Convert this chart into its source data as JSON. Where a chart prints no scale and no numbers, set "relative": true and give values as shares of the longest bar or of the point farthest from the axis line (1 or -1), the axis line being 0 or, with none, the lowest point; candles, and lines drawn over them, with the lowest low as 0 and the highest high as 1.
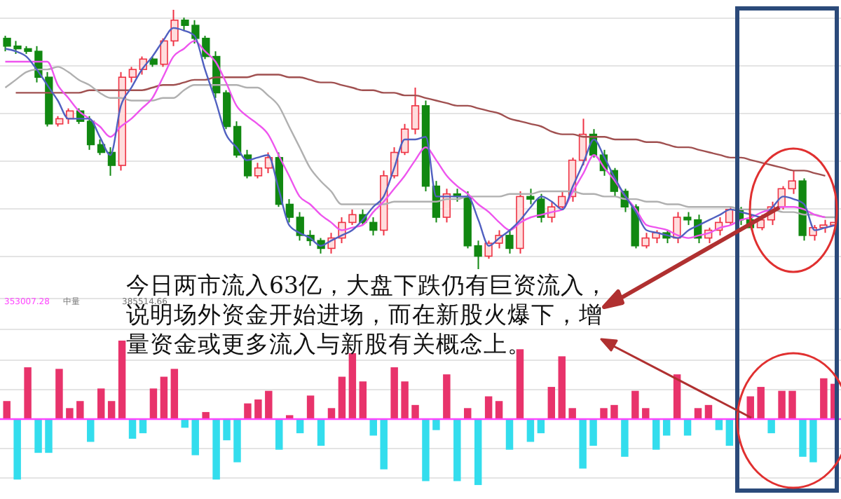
{
  "chart_data": [
    {
      "type": "candlestick",
      "relative": true,
      "grid": true,
      "categories": [
        null,
        null,
        null,
        null,
        null,
        null,
        null,
        null,
        null,
        null,
        null,
        null,
        null,
        null,
        null,
        null,
        null,
        null,
        null,
        null,
        null,
        null,
        null,
        null,
        null,
        null,
        null,
        null,
        null,
        null,
        null,
        null,
        null,
        null,
        null,
        null,
        null,
        null,
        null,
        null,
        null,
        null,
        null,
        null,
        null,
        null,
        null,
        null,
        null,
        null,
        null,
        null,
        null,
        null,
        null,
        null,
        null,
        null,
        null,
        null,
        null,
        null,
        null,
        null,
        null,
        null,
        null,
        null,
        null,
        null,
        null,
        null,
        null,
        null,
        null,
        null,
        null,
        null,
        null,
        null
      ],
      "ohlc": [
        [
          0.89,
          0.9,
          0.84,
          0.86
        ],
        [
          0.86,
          0.88,
          0.83,
          0.85
        ],
        [
          0.85,
          0.86,
          0.83,
          0.84
        ],
        [
          0.84,
          0.86,
          0.72,
          0.74
        ],
        [
          0.74,
          0.76,
          0.55,
          0.56
        ],
        [
          0.56,
          0.59,
          0.55,
          0.58
        ],
        [
          0.58,
          0.62,
          0.56,
          0.61
        ],
        [
          0.61,
          0.62,
          0.56,
          0.57
        ],
        [
          0.57,
          0.59,
          0.46,
          0.48
        ],
        [
          0.48,
          0.5,
          0.44,
          0.45
        ],
        [
          0.45,
          0.47,
          0.36,
          0.4
        ],
        [
          0.4,
          0.76,
          0.38,
          0.74
        ],
        [
          0.74,
          0.78,
          0.72,
          0.77
        ],
        [
          0.77,
          0.82,
          0.75,
          0.81
        ],
        [
          0.81,
          0.82,
          0.78,
          0.79
        ],
        [
          0.79,
          0.89,
          0.78,
          0.88
        ],
        [
          0.88,
          1,
          0.86,
          0.96
        ],
        [
          0.96,
          0.97,
          0.92,
          0.94
        ],
        [
          0.94,
          0.96,
          0.87,
          0.89
        ],
        [
          0.89,
          0.9,
          0.81,
          0.82
        ],
        [
          0.82,
          0.84,
          0.66,
          0.68
        ],
        [
          0.68,
          0.69,
          0.54,
          0.55
        ],
        [
          0.55,
          0.57,
          0.43,
          0.44
        ],
        [
          0.44,
          0.46,
          0.35,
          0.36
        ],
        [
          0.36,
          0.41,
          0.35,
          0.39
        ],
        [
          0.39,
          0.45,
          0.37,
          0.43
        ],
        [
          0.43,
          0.45,
          0.24,
          0.25
        ],
        [
          0.25,
          0.27,
          0.18,
          0.2
        ],
        [
          0.2,
          0.22,
          0.11,
          0.13
        ],
        [
          0.13,
          0.15,
          0.09,
          0.11
        ],
        [
          0.11,
          0.12,
          0.06,
          0.08
        ],
        [
          0.08,
          0.14,
          0.06,
          0.12
        ],
        [
          0.12,
          0.2,
          0.1,
          0.18
        ],
        [
          0.18,
          0.23,
          0.17,
          0.21
        ],
        [
          0.21,
          0.23,
          0.17,
          0.18
        ],
        [
          0.18,
          0.2,
          0.13,
          0.15
        ],
        [
          0.15,
          0.38,
          0.13,
          0.36
        ],
        [
          0.36,
          0.47,
          0.35,
          0.45
        ],
        [
          0.45,
          0.56,
          0.44,
          0.54
        ],
        [
          0.54,
          0.7,
          0.52,
          0.63
        ],
        [
          0.63,
          0.65,
          0.3,
          0.32
        ],
        [
          0.32,
          0.34,
          0.18,
          0.2
        ],
        [
          0.2,
          0.31,
          0.18,
          0.29
        ],
        [
          0.29,
          0.31,
          0.26,
          0.28
        ],
        [
          0.28,
          0.3,
          0.08,
          0.09
        ],
        [
          0.09,
          0.11,
          0,
          0.05
        ],
        [
          0.05,
          0.11,
          0.04,
          0.1
        ],
        [
          0.1,
          0.15,
          0.08,
          0.13
        ],
        [
          0.13,
          0.15,
          0.06,
          0.08
        ],
        [
          0.08,
          0.3,
          0.06,
          0.28
        ],
        [
          0.28,
          0.31,
          0.25,
          0.27
        ],
        [
          0.27,
          0.29,
          0.18,
          0.2
        ],
        [
          0.2,
          0.26,
          0.18,
          0.24
        ],
        [
          0.24,
          0.3,
          0.23,
          0.28
        ],
        [
          0.28,
          0.43,
          0.26,
          0.42
        ],
        [
          0.42,
          0.58,
          0.4,
          0.52
        ],
        [
          0.52,
          0.54,
          0.43,
          0.44
        ],
        [
          0.44,
          0.46,
          0.36,
          0.38
        ],
        [
          0.38,
          0.39,
          0.28,
          0.3
        ],
        [
          0.3,
          0.31,
          0.22,
          0.24
        ],
        [
          0.24,
          0.25,
          0.08,
          0.09
        ],
        [
          0.09,
          0.14,
          0.08,
          0.12
        ],
        [
          0.12,
          0.15,
          0.1,
          0.14
        ],
        [
          0.14,
          0.15,
          0.1,
          0.12
        ],
        [
          0.12,
          0.22,
          0.1,
          0.2
        ],
        [
          0.2,
          0.22,
          0.17,
          0.19
        ],
        [
          0.19,
          0.21,
          0.1,
          0.12
        ],
        [
          0.12,
          0.16,
          0.1,
          0.15
        ],
        [
          0.15,
          0.2,
          0.13,
          0.18
        ],
        [
          0.18,
          0.24,
          0.17,
          0.23
        ],
        [
          0.23,
          0.24,
          0.17,
          0.19
        ],
        [
          0.19,
          0.21,
          0.15,
          0.16
        ],
        [
          0.16,
          0.21,
          0.15,
          0.19
        ],
        [
          0.19,
          0.26,
          0.17,
          0.24
        ],
        [
          0.24,
          0.32,
          0.23,
          0.31
        ],
        [
          0.31,
          0.38,
          0.29,
          0.34
        ],
        [
          0.34,
          0.35,
          0.11,
          0.13
        ],
        [
          0.13,
          0.17,
          0.11,
          0.16
        ],
        [
          0.16,
          0.19,
          0.14,
          0.17
        ],
        [
          0.17,
          0.2,
          0.16,
          0.18
        ]
      ],
      "series": [
        {
          "type": "line",
          "color": "#a05050",
          "values": [
            null,
            0.68,
            0.68,
            0.68,
            0.68,
            0.68,
            0.68,
            0.68,
            0.69,
            0.69,
            0.69,
            0.69,
            0.69,
            0.69,
            0.7,
            0.71,
            0.71,
            0.72,
            0.73,
            0.73,
            0.74,
            0.74,
            0.74,
            0.74,
            0.75,
            0.75,
            0.75,
            0.74,
            0.74,
            0.73,
            0.72,
            0.72,
            0.71,
            0.7,
            0.69,
            0.69,
            0.68,
            0.68,
            0.67,
            0.67,
            0.66,
            0.65,
            0.64,
            0.63,
            0.63,
            0.62,
            0.61,
            0.6,
            0.58,
            0.57,
            0.56,
            0.55,
            0.53,
            0.52,
            0.52,
            0.51,
            0.51,
            0.51,
            0.5,
            0.5,
            0.5,
            0.49,
            0.49,
            0.48,
            0.47,
            0.47,
            0.46,
            0.45,
            0.44,
            0.43,
            0.43,
            0.42,
            0.41,
            0.4,
            0.39,
            0.38,
            0.38,
            0.37,
            0.36,
            null
          ]
        },
        {
          "type": "line",
          "color": "#b0b0b0",
          "values": [
            0.7,
            0.73,
            0.76,
            0.77,
            0.77,
            0.78,
            0.76,
            0.73,
            0.71,
            0.68,
            0.66,
            0.66,
            0.65,
            0.65,
            0.65,
            0.66,
            0.66,
            0.69,
            0.71,
            0.71,
            0.71,
            0.71,
            0.71,
            0.7,
            0.7,
            0.67,
            0.63,
            0.55,
            0.47,
            0.39,
            0.34,
            0.3,
            0.25,
            0.25,
            0.25,
            0.25,
            0.25,
            0.26,
            0.26,
            0.26,
            0.26,
            0.26,
            0.27,
            0.27,
            0.28,
            0.28,
            0.28,
            0.28,
            0.29,
            0.29,
            0.29,
            0.3,
            0.3,
            0.3,
            0.3,
            0.29,
            0.29,
            0.28,
            0.28,
            0.27,
            0.27,
            0.26,
            0.26,
            0.25,
            0.25,
            0.24,
            0.24,
            0.24,
            0.24,
            0.24,
            0.23,
            0.23,
            0.23,
            0.23,
            0.22,
            0.22,
            0.21,
            0.21,
            0.2,
            0.2
          ]
        },
        {
          "type": "line",
          "color": "#ee55ee",
          "values": [
            0.8,
            0.8,
            0.8,
            0.8,
            0.8,
            0.71,
            0.66,
            0.61,
            0.58,
            0.55,
            0.51,
            0.55,
            0.58,
            0.62,
            0.66,
            0.74,
            0.82,
            0.85,
            0.88,
            0.84,
            0.8,
            0.72,
            0.63,
            0.59,
            0.56,
            0.52,
            0.44,
            0.36,
            0.28,
            0.25,
            0.21,
            0.18,
            0.15,
            0.16,
            0.17,
            0.22,
            0.26,
            0.31,
            0.36,
            0.42,
            0.47,
            0.42,
            0.36,
            0.32,
            0.29,
            0.25,
            0.22,
            0.18,
            0.15,
            0.18,
            0.2,
            0.21,
            0.22,
            0.23,
            0.3,
            0.37,
            0.44,
            0.39,
            0.34,
            0.28,
            0.23,
            0.17,
            0.16,
            0.15,
            0.13,
            0.12,
            0.13,
            0.14,
            0.16,
            0.17,
            0.19,
            0.2,
            0.22,
            0.23,
            0.24,
            0.24,
            0.23,
            0.21,
            0.2,
            null
          ]
        },
        {
          "type": "line",
          "color": "#5060c0",
          "values": [
            0.85,
            0.84,
            0.82,
            0.77,
            0.71,
            0.65,
            0.58,
            0.58,
            0.58,
            0.51,
            0.44,
            0.63,
            0.7,
            0.77,
            0.82,
            0.88,
            0.93,
            0.92,
            0.9,
            0.77,
            0.65,
            0.52,
            0.47,
            0.42,
            0.43,
            0.44,
            0.31,
            0.17,
            0.14,
            0.12,
            0.09,
            0.11,
            0.13,
            0.15,
            0.19,
            0.24,
            0.28,
            0.39,
            0.5,
            0.5,
            0.51,
            0.28,
            0.28,
            0.28,
            0.28,
            0.19,
            0.09,
            0.12,
            0.15,
            0.19,
            0.24,
            0.28,
            0.26,
            0.23,
            0.32,
            0.41,
            0.5,
            0.43,
            0.35,
            0.28,
            0.22,
            0.15,
            0.14,
            0.13,
            0.12,
            0.15,
            0.17,
            0.19,
            0.21,
            0.23,
            0.22,
            0.21,
            0.2,
            0.24,
            0.28,
            0.27,
            0.25,
            0.15,
            0.16,
            0.17
          ]
        }
      ],
      "annotations": [
        "今日两市流入63亿，大盘下跌仍有巨资流入，说明场外资金开始进场，而在新股火爆下，增量资金或更多流入与新股有关概念上。"
      ]
    },
    {
      "type": "bar",
      "relative": true,
      "grid": true,
      "categories": [
        null,
        null,
        null,
        null,
        null,
        null,
        null,
        null,
        null,
        null,
        null,
        null,
        null,
        null,
        null,
        null,
        null,
        null,
        null,
        null,
        null,
        null,
        null,
        null,
        null,
        null,
        null,
        null,
        null,
        null,
        null,
        null,
        null,
        null,
        null,
        null,
        null,
        null,
        null,
        null,
        null,
        null,
        null,
        null,
        null,
        null,
        null,
        null,
        null,
        null,
        null,
        null,
        null,
        null,
        null,
        null,
        null,
        null,
        null,
        null,
        null,
        null,
        null,
        null,
        null,
        null,
        null,
        null,
        null,
        null,
        null,
        null,
        null,
        null,
        null,
        null,
        null,
        null,
        null,
        null
      ],
      "series": [
        {
          "color": "#e8336b",
          "values": [
            0.23,
            null,
            0.66,
            null,
            null,
            0.64,
            0.14,
            0.23,
            null,
            0.39,
            0.23,
            1,
            null,
            null,
            0.39,
            0.54,
            0.64,
            null,
            null,
            0.09,
            null,
            null,
            null,
            0.2,
            0.25,
            0.36,
            null,
            0.05,
            null,
            0.3,
            null,
            0.14,
            0.54,
            0.84,
            0.48,
            null,
            null,
            0.66,
            0.48,
            0.18,
            null,
            null,
            0.57,
            null,
            0.14,
            null,
            0.29,
            0.23,
            null,
            0.89,
            null,
            null,
            0.41,
            0.8,
            0.14,
            null,
            null,
            0.14,
            0.18,
            null,
            0.36,
            0.14,
            null,
            null,
            0.57,
            null,
            0.14,
            0.18,
            null,
            null,
            null,
            0.29,
            0.41,
            null,
            0.36,
            0.36,
            null,
            null,
            0.52,
            0.45
          ]
        },
        {
          "color": "#33dded",
          "values": [
            null,
            -0.77,
            null,
            -0.43,
            -0.43,
            null,
            null,
            null,
            -0.29,
            null,
            null,
            null,
            -0.25,
            -0.18,
            null,
            null,
            null,
            -0.11,
            -0.46,
            null,
            -0.77,
            -0.27,
            -0.55,
            null,
            null,
            null,
            -0.39,
            null,
            -0.18,
            null,
            -0.34,
            null,
            null,
            null,
            null,
            -0.21,
            -0.64,
            null,
            null,
            null,
            -0.79,
            -0.14,
            null,
            -0.79,
            null,
            -0.84,
            null,
            null,
            -0.39,
            null,
            -0.29,
            -0.18,
            null,
            null,
            null,
            -0.63,
            -0.34,
            null,
            null,
            -0.48,
            null,
            null,
            -0.39,
            -0.21,
            null,
            -0.21,
            null,
            null,
            -0.14,
            -0.34,
            null,
            null,
            null,
            -0.18,
            null,
            null,
            -0.48,
            -0.55,
            null,
            null
          ]
        }
      ],
      "ref_lines": [
        {
          "axis": "y",
          "value": 0,
          "color": "#ff44ff"
        }
      ],
      "annotations": [
        "353007.28",
        "中量",
        "385514.66"
      ]
    }
  ]
}
